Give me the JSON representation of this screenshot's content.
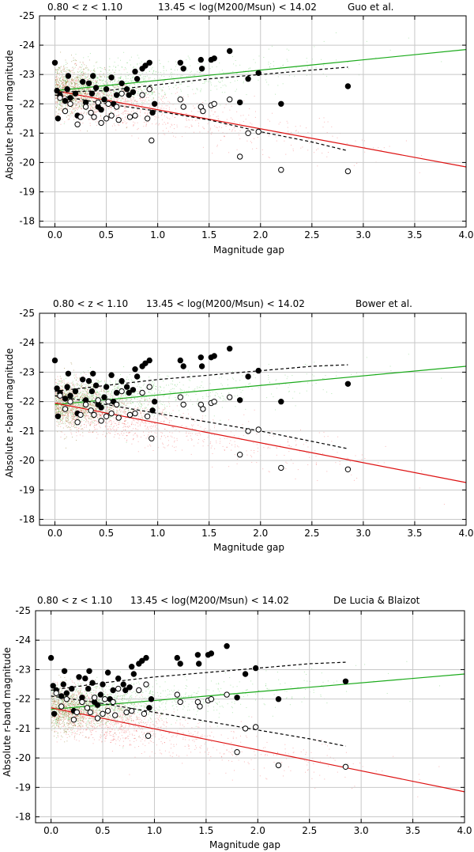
{
  "chart_data": [
    {
      "type": "scatter",
      "title_left": "0.80 < z < 1.10",
      "title_mid": "13.45 < log(M200/Msun) < 14.02",
      "title_right": "Guo et al.",
      "xlabel": "Magnitude gap",
      "ylabel": "Absolute r-band magnitude",
      "xlim": [
        -0.15,
        4.0
      ],
      "ylim": [
        -25,
        -17.8
      ],
      "y_inverted": true,
      "grid": true,
      "xticks": [
        "0.0",
        "0.5",
        "1.0",
        "1.5",
        "2.0",
        "2.5",
        "3.0",
        "3.5",
        "4.0"
      ],
      "yticks": [
        "-25",
        "-24",
        "-23",
        "-22",
        "-21",
        "-20",
        "-19",
        "-18"
      ],
      "green_fit": {
        "x": [
          0.0,
          4.0
        ],
        "y": [
          -22.45,
          -23.85
        ]
      },
      "red_fit": {
        "x": [
          0.0,
          4.0
        ],
        "y": [
          -22.45,
          -19.85
        ]
      },
      "dashed_upper": {
        "x": [
          0.0,
          0.5,
          1.0,
          1.5,
          2.0,
          2.5,
          2.85
        ],
        "y": [
          -22.4,
          -22.45,
          -22.65,
          -22.85,
          -23.0,
          -23.15,
          -23.25
        ]
      },
      "dashed_lower": {
        "x": [
          0.0,
          0.5,
          1.0,
          1.5,
          2.0,
          2.5,
          2.85
        ],
        "y": [
          -22.3,
          -22.0,
          -21.75,
          -21.45,
          -21.05,
          -20.7,
          -20.4
        ]
      },
      "filled_points": [
        [
          0.0,
          -23.4
        ],
        [
          0.02,
          -22.45
        ],
        [
          0.03,
          -21.5
        ],
        [
          0.05,
          -22.3
        ],
        [
          0.1,
          -22.1
        ],
        [
          0.12,
          -22.5
        ],
        [
          0.13,
          -22.95
        ],
        [
          0.15,
          -22.2
        ],
        [
          0.2,
          -22.35
        ],
        [
          0.22,
          -21.6
        ],
        [
          0.27,
          -22.75
        ],
        [
          0.3,
          -22.05
        ],
        [
          0.33,
          -22.7
        ],
        [
          0.36,
          -22.35
        ],
        [
          0.37,
          -22.95
        ],
        [
          0.4,
          -22.55
        ],
        [
          0.42,
          -21.9
        ],
        [
          0.45,
          -21.8
        ],
        [
          0.48,
          -22.15
        ],
        [
          0.5,
          -22.5
        ],
        [
          0.55,
          -22.9
        ],
        [
          0.57,
          -22.0
        ],
        [
          0.6,
          -22.3
        ],
        [
          0.65,
          -22.7
        ],
        [
          0.7,
          -22.5
        ],
        [
          0.72,
          -22.3
        ],
        [
          0.76,
          -22.4
        ],
        [
          0.78,
          -23.1
        ],
        [
          0.8,
          -22.85
        ],
        [
          0.85,
          -23.2
        ],
        [
          0.88,
          -23.3
        ],
        [
          0.92,
          -23.4
        ],
        [
          0.95,
          -21.7
        ],
        [
          0.97,
          -22.0
        ],
        [
          1.22,
          -23.4
        ],
        [
          1.25,
          -23.2
        ],
        [
          1.42,
          -23.5
        ],
        [
          1.43,
          -23.2
        ],
        [
          1.52,
          -23.5
        ],
        [
          1.55,
          -23.55
        ],
        [
          1.7,
          -23.8
        ],
        [
          1.8,
          -22.05
        ],
        [
          1.88,
          -22.85
        ],
        [
          1.98,
          -23.05
        ],
        [
          2.2,
          -22.0
        ],
        [
          2.85,
          -22.6
        ]
      ],
      "open_points": [
        [
          0.05,
          -22.2
        ],
        [
          0.1,
          -21.75
        ],
        [
          0.15,
          -22.0
        ],
        [
          0.22,
          -21.3
        ],
        [
          0.25,
          -21.55
        ],
        [
          0.3,
          -21.9
        ],
        [
          0.35,
          -21.7
        ],
        [
          0.38,
          -21.55
        ],
        [
          0.42,
          -22.05
        ],
        [
          0.45,
          -21.35
        ],
        [
          0.5,
          -21.5
        ],
        [
          0.52,
          -22.0
        ],
        [
          0.55,
          -21.6
        ],
        [
          0.6,
          -21.9
        ],
        [
          0.62,
          -21.45
        ],
        [
          0.65,
          -22.35
        ],
        [
          0.73,
          -21.55
        ],
        [
          0.78,
          -21.6
        ],
        [
          0.85,
          -22.3
        ],
        [
          0.9,
          -21.5
        ],
        [
          0.92,
          -22.5
        ],
        [
          0.94,
          -20.75
        ],
        [
          1.22,
          -22.15
        ],
        [
          1.25,
          -21.9
        ],
        [
          1.42,
          -21.9
        ],
        [
          1.44,
          -21.75
        ],
        [
          1.52,
          -21.95
        ],
        [
          1.55,
          -22.0
        ],
        [
          1.7,
          -22.15
        ],
        [
          1.8,
          -20.2
        ],
        [
          1.88,
          -21.0
        ],
        [
          1.98,
          -21.05
        ],
        [
          2.2,
          -19.75
        ],
        [
          2.85,
          -19.7
        ]
      ]
    },
    {
      "type": "scatter",
      "title_left": "0.80 < z < 1.10",
      "title_mid": "13.45 < log(M200/Msun) < 14.02",
      "title_right": "Bower et al.",
      "xlabel": "Magnitude gap",
      "ylabel": "Absolute r-band magnitude",
      "xlim": [
        -0.15,
        4.0
      ],
      "ylim": [
        -25,
        -17.8
      ],
      "y_inverted": true,
      "grid": true,
      "xticks": [
        "0.0",
        "0.5",
        "1.0",
        "1.5",
        "2.0",
        "2.5",
        "3.0",
        "3.5",
        "4.0"
      ],
      "yticks": [
        "-25",
        "-24",
        "-23",
        "-22",
        "-21",
        "-20",
        "-19",
        "-18"
      ],
      "green_fit": {
        "x": [
          0.0,
          4.0
        ],
        "y": [
          -21.9,
          -23.2
        ]
      },
      "red_fit": {
        "x": [
          0.0,
          4.0
        ],
        "y": [
          -21.95,
          -19.25
        ]
      },
      "dashed_upper": {
        "x": [
          0.0,
          0.5,
          1.0,
          1.5,
          2.0,
          2.5,
          2.85
        ],
        "y": [
          -22.35,
          -22.55,
          -22.75,
          -22.9,
          -23.05,
          -23.2,
          -23.25
        ]
      },
      "dashed_lower": {
        "x": [
          0.0,
          0.5,
          1.0,
          1.5,
          2.0,
          2.5,
          2.85
        ],
        "y": [
          -22.2,
          -21.9,
          -21.6,
          -21.3,
          -21.0,
          -20.65,
          -20.4
        ]
      },
      "filled_points": [
        [
          0.0,
          -23.4
        ],
        [
          0.02,
          -22.45
        ],
        [
          0.03,
          -21.5
        ],
        [
          0.05,
          -22.3
        ],
        [
          0.1,
          -22.1
        ],
        [
          0.12,
          -22.5
        ],
        [
          0.13,
          -22.95
        ],
        [
          0.15,
          -22.2
        ],
        [
          0.2,
          -22.35
        ],
        [
          0.22,
          -21.6
        ],
        [
          0.27,
          -22.75
        ],
        [
          0.3,
          -22.05
        ],
        [
          0.33,
          -22.7
        ],
        [
          0.36,
          -22.35
        ],
        [
          0.37,
          -22.95
        ],
        [
          0.4,
          -22.55
        ],
        [
          0.42,
          -21.9
        ],
        [
          0.45,
          -21.8
        ],
        [
          0.48,
          -22.15
        ],
        [
          0.5,
          -22.5
        ],
        [
          0.55,
          -22.9
        ],
        [
          0.57,
          -22.0
        ],
        [
          0.6,
          -22.3
        ],
        [
          0.65,
          -22.7
        ],
        [
          0.7,
          -22.5
        ],
        [
          0.72,
          -22.3
        ],
        [
          0.76,
          -22.4
        ],
        [
          0.78,
          -23.1
        ],
        [
          0.8,
          -22.85
        ],
        [
          0.85,
          -23.2
        ],
        [
          0.88,
          -23.3
        ],
        [
          0.92,
          -23.4
        ],
        [
          0.95,
          -21.7
        ],
        [
          0.97,
          -22.0
        ],
        [
          1.22,
          -23.4
        ],
        [
          1.25,
          -23.2
        ],
        [
          1.42,
          -23.5
        ],
        [
          1.43,
          -23.2
        ],
        [
          1.52,
          -23.5
        ],
        [
          1.55,
          -23.55
        ],
        [
          1.7,
          -23.8
        ],
        [
          1.8,
          -22.05
        ],
        [
          1.88,
          -22.85
        ],
        [
          1.98,
          -23.05
        ],
        [
          2.2,
          -22.0
        ],
        [
          2.85,
          -22.6
        ]
      ],
      "open_points": [
        [
          0.05,
          -22.2
        ],
        [
          0.1,
          -21.75
        ],
        [
          0.15,
          -22.0
        ],
        [
          0.22,
          -21.3
        ],
        [
          0.25,
          -21.55
        ],
        [
          0.3,
          -21.9
        ],
        [
          0.35,
          -21.7
        ],
        [
          0.38,
          -21.55
        ],
        [
          0.42,
          -22.05
        ],
        [
          0.45,
          -21.35
        ],
        [
          0.5,
          -21.5
        ],
        [
          0.52,
          -22.0
        ],
        [
          0.55,
          -21.6
        ],
        [
          0.6,
          -21.9
        ],
        [
          0.62,
          -21.45
        ],
        [
          0.65,
          -22.35
        ],
        [
          0.73,
          -21.55
        ],
        [
          0.78,
          -21.6
        ],
        [
          0.85,
          -22.3
        ],
        [
          0.9,
          -21.5
        ],
        [
          0.92,
          -22.5
        ],
        [
          0.94,
          -20.75
        ],
        [
          1.22,
          -22.15
        ],
        [
          1.25,
          -21.9
        ],
        [
          1.42,
          -21.9
        ],
        [
          1.44,
          -21.75
        ],
        [
          1.52,
          -21.95
        ],
        [
          1.55,
          -22.0
        ],
        [
          1.7,
          -22.15
        ],
        [
          1.8,
          -20.2
        ],
        [
          1.88,
          -21.0
        ],
        [
          1.98,
          -21.05
        ],
        [
          2.2,
          -19.75
        ],
        [
          2.85,
          -19.7
        ]
      ]
    },
    {
      "type": "scatter",
      "title_left": "0.80 < z < 1.10",
      "title_mid": "13.45 < log(M200/Msun) < 14.02",
      "title_right": "De Lucia & Blaizot",
      "xlabel": "Magnitude gap",
      "ylabel": "Absolute r-band magnitude",
      "xlim": [
        -0.15,
        4.0
      ],
      "ylim": [
        -25,
        -17.8
      ],
      "y_inverted": true,
      "grid": true,
      "xticks": [
        "0.0",
        "0.5",
        "1.0",
        "1.5",
        "2.0",
        "2.5",
        "3.0",
        "3.5",
        "4.0"
      ],
      "yticks": [
        "-25",
        "-24",
        "-23",
        "-22",
        "-21",
        "-20",
        "-19",
        "-18"
      ],
      "green_fit": {
        "x": [
          0.0,
          4.0
        ],
        "y": [
          -21.65,
          -22.85
        ]
      },
      "red_fit": {
        "x": [
          0.0,
          4.0
        ],
        "y": [
          -21.7,
          -18.85
        ]
      },
      "dashed_upper": {
        "x": [
          0.0,
          0.5,
          1.0,
          1.5,
          2.0,
          2.5,
          2.85
        ],
        "y": [
          -22.3,
          -22.55,
          -22.75,
          -22.9,
          -23.05,
          -23.2,
          -23.25
        ]
      },
      "dashed_lower": {
        "x": [
          0.0,
          0.5,
          1.0,
          1.5,
          2.0,
          2.5,
          2.85
        ],
        "y": [
          -22.1,
          -21.85,
          -21.55,
          -21.25,
          -20.95,
          -20.65,
          -20.4
        ]
      },
      "filled_points": [
        [
          0.0,
          -23.4
        ],
        [
          0.02,
          -22.45
        ],
        [
          0.03,
          -21.5
        ],
        [
          0.05,
          -22.3
        ],
        [
          0.1,
          -22.1
        ],
        [
          0.12,
          -22.5
        ],
        [
          0.13,
          -22.95
        ],
        [
          0.15,
          -22.2
        ],
        [
          0.2,
          -22.35
        ],
        [
          0.22,
          -21.6
        ],
        [
          0.27,
          -22.75
        ],
        [
          0.3,
          -22.05
        ],
        [
          0.33,
          -22.7
        ],
        [
          0.36,
          -22.35
        ],
        [
          0.37,
          -22.95
        ],
        [
          0.4,
          -22.55
        ],
        [
          0.42,
          -21.9
        ],
        [
          0.45,
          -21.8
        ],
        [
          0.48,
          -22.15
        ],
        [
          0.5,
          -22.5
        ],
        [
          0.55,
          -22.9
        ],
        [
          0.57,
          -22.0
        ],
        [
          0.6,
          -22.3
        ],
        [
          0.65,
          -22.7
        ],
        [
          0.7,
          -22.5
        ],
        [
          0.72,
          -22.3
        ],
        [
          0.76,
          -22.4
        ],
        [
          0.78,
          -23.1
        ],
        [
          0.8,
          -22.85
        ],
        [
          0.85,
          -23.2
        ],
        [
          0.88,
          -23.3
        ],
        [
          0.92,
          -23.4
        ],
        [
          0.95,
          -21.7
        ],
        [
          0.97,
          -22.0
        ],
        [
          1.22,
          -23.4
        ],
        [
          1.25,
          -23.2
        ],
        [
          1.42,
          -23.5
        ],
        [
          1.43,
          -23.2
        ],
        [
          1.52,
          -23.5
        ],
        [
          1.55,
          -23.55
        ],
        [
          1.7,
          -23.8
        ],
        [
          1.8,
          -22.05
        ],
        [
          1.88,
          -22.85
        ],
        [
          1.98,
          -23.05
        ],
        [
          2.2,
          -22.0
        ],
        [
          2.85,
          -22.6
        ]
      ],
      "open_points": [
        [
          0.05,
          -22.2
        ],
        [
          0.1,
          -21.75
        ],
        [
          0.15,
          -22.0
        ],
        [
          0.22,
          -21.3
        ],
        [
          0.25,
          -21.55
        ],
        [
          0.3,
          -21.9
        ],
        [
          0.35,
          -21.7
        ],
        [
          0.38,
          -21.55
        ],
        [
          0.42,
          -22.05
        ],
        [
          0.45,
          -21.35
        ],
        [
          0.5,
          -21.5
        ],
        [
          0.52,
          -22.0
        ],
        [
          0.55,
          -21.6
        ],
        [
          0.6,
          -21.9
        ],
        [
          0.62,
          -21.45
        ],
        [
          0.65,
          -22.35
        ],
        [
          0.73,
          -21.55
        ],
        [
          0.78,
          -21.6
        ],
        [
          0.85,
          -22.3
        ],
        [
          0.9,
          -21.5
        ],
        [
          0.92,
          -22.5
        ],
        [
          0.94,
          -20.75
        ],
        [
          1.22,
          -22.15
        ],
        [
          1.25,
          -21.9
        ],
        [
          1.42,
          -21.9
        ],
        [
          1.44,
          -21.75
        ],
        [
          1.52,
          -21.95
        ],
        [
          1.55,
          -22.0
        ],
        [
          1.7,
          -22.15
        ],
        [
          1.8,
          -20.2
        ],
        [
          1.88,
          -21.0
        ],
        [
          1.98,
          -21.05
        ],
        [
          2.2,
          -19.75
        ],
        [
          2.85,
          -19.7
        ]
      ]
    }
  ],
  "colors": {
    "green": "#1aaa1a",
    "red": "#dd1111",
    "green_cloud": "#33bb33",
    "red_cloud": "#ee3333",
    "brown_cloud": "#8a6d1a",
    "grid": "#c8c8c8",
    "axis": "#000000"
  }
}
